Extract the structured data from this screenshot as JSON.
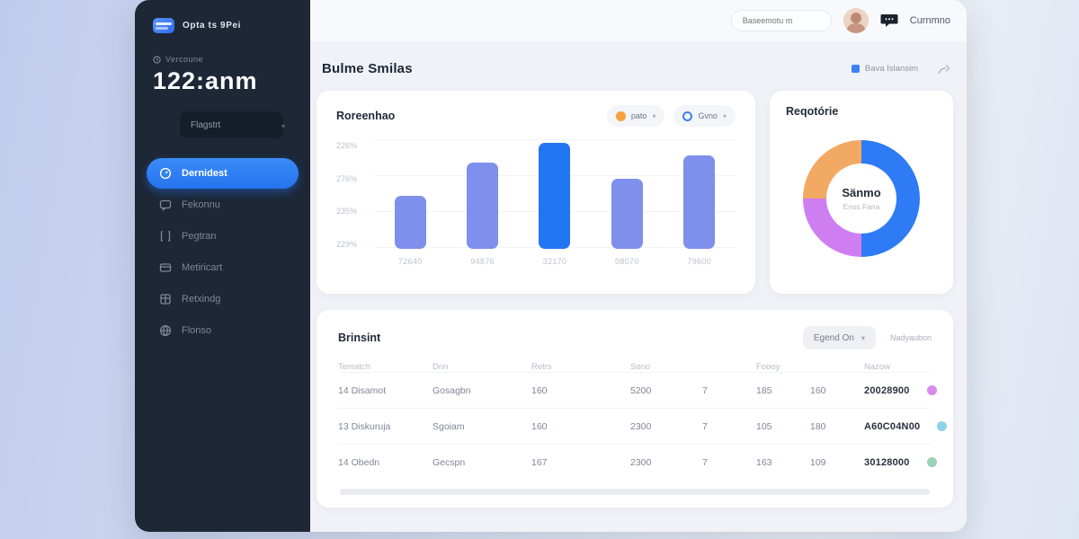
{
  "sidebar": {
    "logo_text": "Opta ts 9Pei",
    "timer_label": "Vercoune",
    "timer_value": "122:anm",
    "search_value": "Flagstrt",
    "items": [
      {
        "label": "Dernidest",
        "active": true
      },
      {
        "label": "Fekonnu",
        "active": false
      },
      {
        "label": "Pegtran",
        "active": false
      },
      {
        "label": "Metiricart",
        "active": false
      },
      {
        "label": "Retxindg",
        "active": false
      },
      {
        "label": "Flonso",
        "active": false
      }
    ]
  },
  "topbar": {
    "search_placeholder": "Baseemotu m",
    "user_name": "Curnmno"
  },
  "page": {
    "title": "Bulme Smilas",
    "legend_label": "Bava Islansim"
  },
  "revenue_card": {
    "title": "Roreenhao",
    "filters": [
      {
        "label": "pato"
      },
      {
        "label": "Gvno"
      }
    ]
  },
  "donut_card": {
    "title": "Reqotórie",
    "center_title": "Sänmo",
    "center_subtitle": "Enss Fana"
  },
  "chart_data": [
    {
      "type": "bar",
      "title": "Roreenhao",
      "categories": [
        "72640",
        "94876",
        "32170",
        "08070",
        "79600"
      ],
      "values": [
        48,
        79,
        97,
        64,
        85
      ],
      "ylim": [
        0,
        100
      ],
      "y_tick_labels": [
        "226%",
        "276%",
        "235%",
        "229%"
      ],
      "bar_colors": [
        "#7E90EC",
        "#7E90EC",
        "#2376F1",
        "#7E90EC",
        "#7E90EC"
      ],
      "grid": true,
      "legend_position": "none"
    },
    {
      "type": "pie",
      "title": "Reqotórie",
      "labels": [
        "segment-blue",
        "segment-purple",
        "segment-orange"
      ],
      "values": [
        50,
        25,
        25
      ],
      "colors": [
        "#2E7BF5",
        "#CF7EF2",
        "#F2A963"
      ],
      "center_title": "Sänmo",
      "center_subtitle": "Enss Fana"
    }
  ],
  "table_card": {
    "title": "Brinsint",
    "select_label": "Egend On",
    "link_label": "Nadyaubon",
    "columns": [
      "Tematch",
      "Dnn",
      "Retrs",
      "Sono",
      "",
      "Foooy",
      "",
      "Nazow",
      ""
    ],
    "rows": [
      {
        "cells": [
          "14 Disamot",
          "Gosagbn",
          "160",
          "5200",
          "7",
          "185",
          "160",
          "20028900"
        ],
        "dot_color": "#D98AEC"
      },
      {
        "cells": [
          "13 Diskuruja",
          "Sgoiam",
          "160",
          "2300",
          "7",
          "105",
          "180",
          "A60C04N00"
        ],
        "dot_color": "#8FD2EC"
      },
      {
        "cells": [
          "14 Obedn",
          "Gecspn",
          "167",
          "2300",
          "7",
          "163",
          "109",
          "30128000"
        ],
        "dot_color": "#9AD2B4"
      }
    ]
  }
}
